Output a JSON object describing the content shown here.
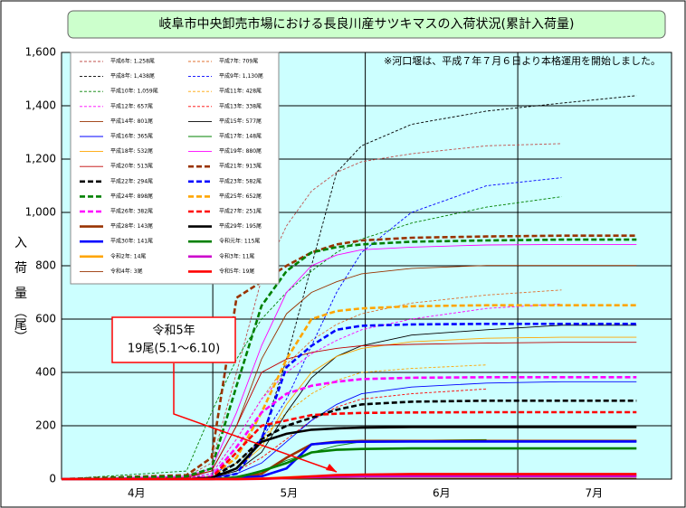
{
  "chart_data": {
    "type": "line",
    "title": "岐阜市中央卸売市場における長良川産サツキマスの入荷状況(累計入荷量)",
    "y_label": "入　荷　量　（尾）",
    "note": "※河口堰は、平成７年７月６日より本格運用を開始しました。",
    "callout": [
      "令和5年",
      "19尾(5.1～6.10)"
    ],
    "x": [
      0,
      25,
      30,
      35,
      40,
      45,
      50,
      55,
      60,
      70,
      85,
      100,
      115
    ],
    "xlim": [
      0,
      122
    ],
    "xticks": [
      {
        "value": 15,
        "label": "4月"
      },
      {
        "value": 45.5,
        "label": "5月"
      },
      {
        "value": 76,
        "label": "6月"
      },
      {
        "value": 106.5,
        "label": "7月"
      }
    ],
    "ylim": [
      0,
      1600
    ],
    "yticks": [
      0,
      200,
      400,
      600,
      800,
      {
        "value": 1000,
        "label": "1,000"
      },
      {
        "value": 1200,
        "label": "1,200"
      },
      {
        "value": 1400,
        "label": "1,400"
      },
      {
        "value": 1600,
        "label": "1,600"
      }
    ],
    "grid": true,
    "series": [
      {
        "name": "平成6年: 1,258尾",
        "color": "#c0504d",
        "line": "thin-dashed",
        "values": [
          0,
          10,
          60,
          400,
          750,
          950,
          1080,
          1150,
          1190,
          1220,
          1250,
          1258,
          null
        ]
      },
      {
        "name": "平成7年: 709尾",
        "color": "#e07030",
        "line": "thin-dashed",
        "values": [
          0,
          5,
          20,
          150,
          300,
          430,
          520,
          580,
          620,
          660,
          690,
          709,
          null
        ]
      },
      {
        "name": "平成8年: 1,438尾",
        "color": "#000000",
        "line": "thin-dashed",
        "values": [
          0,
          5,
          10,
          40,
          150,
          450,
          800,
          1150,
          1250,
          1330,
          1380,
          1410,
          1438
        ]
      },
      {
        "name": "平成9年: 1,130尾",
        "color": "#0000ff",
        "line": "thin-dashed",
        "values": [
          0,
          5,
          20,
          60,
          150,
          300,
          500,
          700,
          850,
          1000,
          1100,
          1130,
          null
        ]
      },
      {
        "name": "平成10年: 1,059尾",
        "color": "#008000",
        "line": "thin-dashed",
        "values": [
          0,
          30,
          250,
          450,
          600,
          700,
          780,
          850,
          900,
          960,
          1020,
          1059,
          null
        ]
      },
      {
        "name": "平成11年: 428尾",
        "color": "#ffa500",
        "line": "thin-dashed",
        "values": [
          0,
          0,
          10,
          60,
          150,
          250,
          320,
          370,
          400,
          415,
          428,
          null,
          null
        ]
      },
      {
        "name": "平成12年: 657尾",
        "color": "#ff00ff",
        "line": "thin-dashed",
        "values": [
          0,
          5,
          20,
          150,
          300,
          400,
          470,
          520,
          560,
          600,
          640,
          657,
          null
        ]
      },
      {
        "name": "平成13年: 338尾",
        "color": "#ff0000",
        "line": "thin-dashed",
        "values": [
          0,
          0,
          5,
          30,
          80,
          150,
          220,
          270,
          300,
          320,
          338,
          null,
          null
        ]
      },
      {
        "name": "平成14年: 801尾",
        "color": "#993300",
        "line": "thin-solid",
        "values": [
          0,
          10,
          30,
          200,
          450,
          620,
          700,
          740,
          770,
          790,
          801,
          801,
          801
        ]
      },
      {
        "name": "平成15年: 577尾",
        "color": "#000000",
        "line": "thin-solid",
        "values": [
          0,
          0,
          5,
          30,
          100,
          250,
          380,
          460,
          500,
          540,
          560,
          577,
          577
        ]
      },
      {
        "name": "平成16年: 365尾",
        "color": "#0000ff",
        "line": "thin-solid",
        "values": [
          0,
          0,
          5,
          20,
          60,
          140,
          220,
          280,
          320,
          345,
          360,
          365,
          365
        ]
      },
      {
        "name": "平成17年: 148尾",
        "color": "#008000",
        "line": "thin-solid",
        "values": [
          0,
          0,
          2,
          10,
          30,
          70,
          100,
          125,
          140,
          145,
          148,
          null,
          null
        ]
      },
      {
        "name": "平成18年: 532尾",
        "color": "#ffa500",
        "line": "thin-solid",
        "values": [
          0,
          0,
          5,
          40,
          120,
          280,
          400,
          460,
          490,
          515,
          528,
          532,
          532
        ]
      },
      {
        "name": "平成19年: 880尾",
        "color": "#ff00ff",
        "line": "thin-solid",
        "values": [
          0,
          10,
          40,
          250,
          500,
          700,
          800,
          840,
          860,
          870,
          878,
          880,
          880
        ]
      },
      {
        "name": "平成20年: 513尾",
        "color": "#c00000",
        "line": "thin-solid",
        "values": [
          0,
          5,
          30,
          200,
          400,
          450,
          475,
          490,
          500,
          505,
          510,
          513,
          513
        ]
      },
      {
        "name": "平成21年: 913尾",
        "color": "#993300",
        "line": "thick-dashed",
        "values": [
          0,
          15,
          80,
          680,
          740,
          800,
          850,
          880,
          895,
          905,
          910,
          913,
          913
        ]
      },
      {
        "name": "平成22年: 294尾",
        "color": "#000000",
        "line": "thick-dashed",
        "values": [
          0,
          0,
          5,
          60,
          150,
          200,
          230,
          260,
          280,
          290,
          294,
          294,
          294
        ]
      },
      {
        "name": "平成23年: 582尾",
        "color": "#0000ff",
        "line": "thick-dashed",
        "values": [
          0,
          0,
          0,
          20,
          150,
          420,
          500,
          560,
          575,
          580,
          582,
          582,
          582
        ]
      },
      {
        "name": "平成24年: 898尾",
        "color": "#008000",
        "line": "thick-dashed",
        "values": [
          0,
          10,
          40,
          350,
          650,
          780,
          850,
          870,
          880,
          890,
          895,
          898,
          898
        ]
      },
      {
        "name": "平成25年: 652尾",
        "color": "#ffa500",
        "line": "thick-dashed",
        "values": [
          0,
          0,
          10,
          80,
          250,
          450,
          600,
          630,
          640,
          648,
          652,
          652,
          652
        ]
      },
      {
        "name": "平成26年: 382尾",
        "color": "#ff00ff",
        "line": "thick-dashed",
        "values": [
          0,
          0,
          10,
          120,
          250,
          320,
          350,
          365,
          375,
          380,
          382,
          382,
          382
        ]
      },
      {
        "name": "平成27年: 251尾",
        "color": "#ff0000",
        "line": "thick-dashed",
        "values": [
          0,
          0,
          5,
          100,
          200,
          220,
          240,
          245,
          248,
          250,
          251,
          251,
          251
        ]
      },
      {
        "name": "平成28年: 143尾",
        "color": "#993300",
        "line": "thick-solid",
        "values": [
          0,
          0,
          0,
          5,
          20,
          80,
          130,
          140,
          143,
          143,
          143,
          143,
          143
        ]
      },
      {
        "name": "平成29年: 195尾",
        "color": "#000000",
        "line": "thick-solid",
        "values": [
          0,
          0,
          5,
          40,
          140,
          170,
          185,
          190,
          193,
          195,
          195,
          195,
          195
        ]
      },
      {
        "name": "平成30年: 141尾",
        "color": "#0000ff",
        "line": "thick-solid",
        "values": [
          0,
          0,
          0,
          5,
          10,
          40,
          130,
          138,
          140,
          141,
          141,
          141,
          141
        ]
      },
      {
        "name": "令和元年: 115尾",
        "color": "#008000",
        "line": "thick-solid",
        "values": [
          0,
          0,
          0,
          5,
          30,
          60,
          100,
          110,
          113,
          115,
          115,
          115,
          115
        ]
      },
      {
        "name": "令和2年: 14尾",
        "color": "#ffa500",
        "line": "thick-solid",
        "values": [
          0,
          0,
          0,
          0,
          2,
          6,
          10,
          12,
          13,
          14,
          14,
          14,
          14
        ]
      },
      {
        "name": "令和3年: 11尾",
        "color": "#cc00cc",
        "line": "thick-solid",
        "values": [
          0,
          0,
          0,
          0,
          1,
          3,
          6,
          9,
          10,
          11,
          11,
          11,
          11
        ]
      },
      {
        "name": "令和4年: 3尾",
        "color": "#993300",
        "line": "thin-solid",
        "values": [
          0,
          0,
          0,
          0,
          0,
          1,
          2,
          3,
          3,
          3,
          3,
          3,
          3
        ]
      },
      {
        "name": "令和5年: 19尾",
        "color": "#ff0000",
        "line": "thick-solid",
        "values": [
          0,
          0,
          0,
          0,
          1,
          5,
          10,
          15,
          17,
          19,
          19,
          19,
          19
        ]
      }
    ]
  }
}
